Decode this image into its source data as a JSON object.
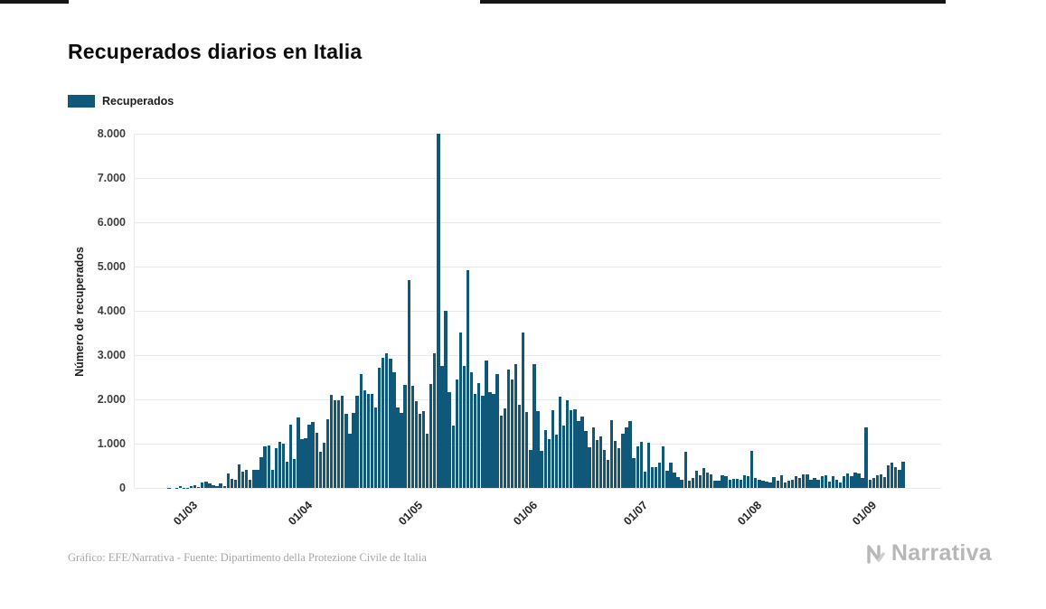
{
  "header": {
    "title": "Recuperados diarios en Italia"
  },
  "legend": {
    "label": "Recuperados"
  },
  "chart_data": {
    "type": "bar",
    "title": "Recuperados diarios en Italia",
    "xlabel": "",
    "ylabel": "Número de recuperados",
    "legend": [
      "Recuperados"
    ],
    "grid": "horizontal",
    "bar_color": "#0f587a",
    "ymax": 8000,
    "y_ticks": [
      "0",
      "1.000",
      "2.000",
      "3.000",
      "4.000",
      "5.000",
      "6.000",
      "7.000",
      "8.000"
    ],
    "x_start": "24/02",
    "x_end": "10/09",
    "x_ticks": [
      {
        "label": "01/03",
        "index": 6
      },
      {
        "label": "01/04",
        "index": 37
      },
      {
        "label": "01/05",
        "index": 67
      },
      {
        "label": "01/06",
        "index": 98
      },
      {
        "label": "01/07",
        "index": 128
      },
      {
        "label": "01/08",
        "index": 159
      },
      {
        "label": "01/09",
        "index": 190
      }
    ],
    "values": [
      2,
      0,
      2,
      42,
      4,
      5,
      33,
      66,
      11,
      116,
      138,
      109,
      66,
      33,
      102,
      41,
      321,
      213,
      181,
      527,
      369,
      414,
      192,
      415,
      415,
      689,
      943,
      952,
      408,
      894,
      1036,
      999,
      589,
      1434,
      646,
      1590,
      1109,
      1118,
      1431,
      1480,
      1238,
      819,
      1022,
      1555,
      2099,
      1979,
      1985,
      2079,
      1677,
      1224,
      1695,
      2072,
      2563,
      2200,
      2128,
      2128,
      1822,
      2723,
      2943,
      3033,
      2922,
      2622,
      1808,
      1696,
      2317,
      4693,
      2311,
      1965,
      1665,
      1740,
      1225,
      2352,
      3031,
      8014,
      2747,
      4008,
      2155,
      1401,
      2452,
      3502,
      2747,
      4917,
      2605,
      2115,
      2366,
      2075,
      2881,
      2160,
      2120,
      2570,
      1639,
      1798,
      2677,
      2443,
      2789,
      1874,
      3503,
      1717,
      848,
      2789,
      1737,
      846,
      1297,
      1099,
      1747,
      1213,
      2062,
      1399,
      1979,
      1747,
      1780,
      1505,
      1610,
      1293,
      928,
      1363,
      1088,
      1159,
      852,
      640,
      1526,
      1064,
      890,
      1235,
      1362,
      1505,
      680,
      933,
      1050,
      366,
      1028,
      469,
      477,
      574,
      939,
      396,
      574,
      338,
      255,
      188,
      825,
      168,
      230,
      386,
      287,
      442,
      347,
      305,
      161,
      170,
      288,
      275,
      175,
      197,
      210,
      182,
      288,
      275,
      830,
      223,
      178,
      159,
      152,
      129,
      240,
      164,
      289,
      131,
      168,
      182,
      259,
      224,
      305,
      300,
      182,
      233,
      190,
      262,
      283,
      148,
      268,
      183,
      123,
      267,
      318,
      275,
      340,
      336,
      223,
      1365,
      184,
      224,
      276,
      305,
      245,
      519,
      570,
      473,
      411,
      583
    ]
  },
  "footer": {
    "source": "Gráfico: EFE/Narrativa - Fuente: Dipartimento della Protezione Civile de Italia",
    "brand": "Narrativa"
  }
}
